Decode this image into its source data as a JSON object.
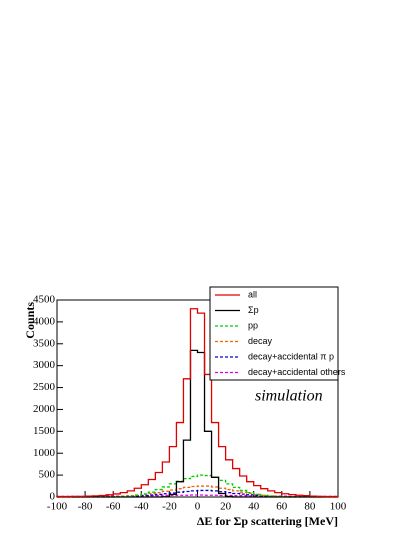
{
  "chart_data": {
    "type": "histogram",
    "xlabel": "ΔE for  Σp scattering [MeV]",
    "ylabel": "Counts",
    "annotation": "simulation",
    "legend": "top right",
    "xlim": [
      -100,
      100
    ],
    "xticks": [
      -100,
      -80,
      -60,
      -40,
      -20,
      0,
      20,
      40,
      60,
      80,
      100
    ],
    "ylim": [
      0,
      4500
    ],
    "yticks": [
      0,
      500,
      1000,
      1500,
      2000,
      2500,
      3000,
      3500,
      4000,
      4500
    ],
    "bins": [
      -100,
      -95,
      -90,
      -85,
      -80,
      -75,
      -70,
      -65,
      -60,
      -55,
      -50,
      -45,
      -40,
      -35,
      -30,
      -25,
      -20,
      -15,
      -10,
      -5,
      0,
      5,
      10,
      15,
      20,
      25,
      30,
      35,
      40,
      45,
      50,
      55,
      60,
      65,
      70,
      75,
      80,
      85,
      90,
      95,
      100
    ],
    "series": [
      {
        "name": "all",
        "color": "#e00000",
        "dash": false,
        "values": [
          10,
          10,
          15,
          15,
          20,
          25,
          35,
          50,
          70,
          100,
          140,
          200,
          280,
          400,
          560,
          800,
          1150,
          1700,
          2700,
          4300,
          4200,
          2800,
          1700,
          1150,
          850,
          650,
          480,
          350,
          260,
          190,
          140,
          100,
          75,
          55,
          40,
          30,
          20,
          15,
          10,
          10
        ]
      },
      {
        "name": "Σp",
        "color": "#000000",
        "dash": false,
        "values": [
          0,
          0,
          0,
          0,
          0,
          0,
          0,
          0,
          0,
          0,
          0,
          0,
          0,
          0,
          0,
          5,
          60,
          350,
          1300,
          3350,
          3300,
          1500,
          450,
          80,
          10,
          0,
          0,
          0,
          0,
          0,
          0,
          0,
          0,
          0,
          0,
          0,
          0,
          0,
          0,
          0
        ]
      },
      {
        "name": "pp",
        "color": "#00cc00",
        "dash": true,
        "values": [
          0,
          0,
          0,
          0,
          0,
          0,
          0,
          0,
          5,
          10,
          20,
          40,
          70,
          110,
          170,
          230,
          300,
          360,
          420,
          470,
          500,
          490,
          450,
          380,
          300,
          220,
          150,
          100,
          60,
          35,
          20,
          10,
          5,
          0,
          0,
          0,
          0,
          0,
          0,
          0
        ]
      },
      {
        "name": "decay",
        "color": "#ee6600",
        "dash": true,
        "values": [
          5,
          5,
          5,
          5,
          5,
          5,
          5,
          5,
          10,
          20,
          30,
          45,
          60,
          80,
          100,
          130,
          160,
          190,
          220,
          240,
          250,
          250,
          230,
          200,
          170,
          140,
          110,
          85,
          60,
          40,
          25,
          15,
          5,
          5,
          5,
          5,
          5,
          5,
          5,
          5
        ]
      },
      {
        "name": "decay+accidental π p",
        "color": "#0000cc",
        "dash": true,
        "values": [
          5,
          5,
          5,
          5,
          5,
          5,
          5,
          5,
          5,
          10,
          15,
          25,
          35,
          45,
          60,
          75,
          90,
          110,
          125,
          140,
          150,
          150,
          140,
          120,
          100,
          80,
          65,
          50,
          35,
          25,
          15,
          10,
          5,
          5,
          5,
          5,
          5,
          5,
          5,
          5
        ]
      },
      {
        "name": "decay+accidental others",
        "color": "#dd00dd",
        "dash": true,
        "values": [
          15,
          15,
          15,
          15,
          15,
          15,
          20,
          20,
          20,
          20,
          25,
          25,
          25,
          30,
          30,
          35,
          35,
          40,
          40,
          45,
          45,
          40,
          40,
          35,
          35,
          30,
          30,
          25,
          25,
          20,
          20,
          20,
          20,
          15,
          15,
          15,
          15,
          15,
          15,
          15
        ]
      }
    ]
  }
}
